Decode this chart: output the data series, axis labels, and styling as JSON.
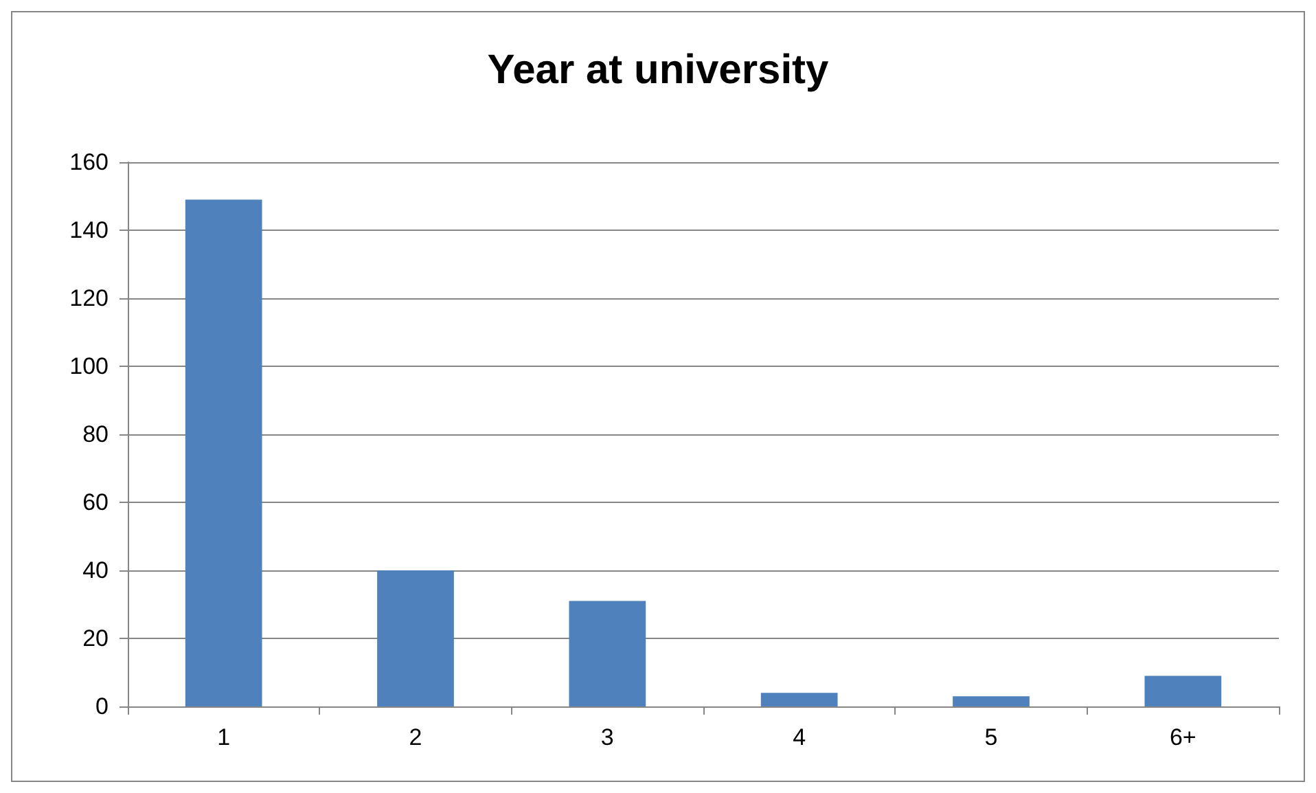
{
  "chart_data": {
    "type": "bar",
    "title": "Year at university",
    "categories": [
      "1",
      "2",
      "3",
      "4",
      "5",
      "6+"
    ],
    "values": [
      149,
      40,
      31,
      4,
      3,
      9
    ],
    "color": "#4f81bd",
    "ylim": [
      0,
      160
    ],
    "yticks": [
      0,
      20,
      40,
      60,
      80,
      100,
      120,
      140,
      160
    ],
    "grid": "y"
  }
}
